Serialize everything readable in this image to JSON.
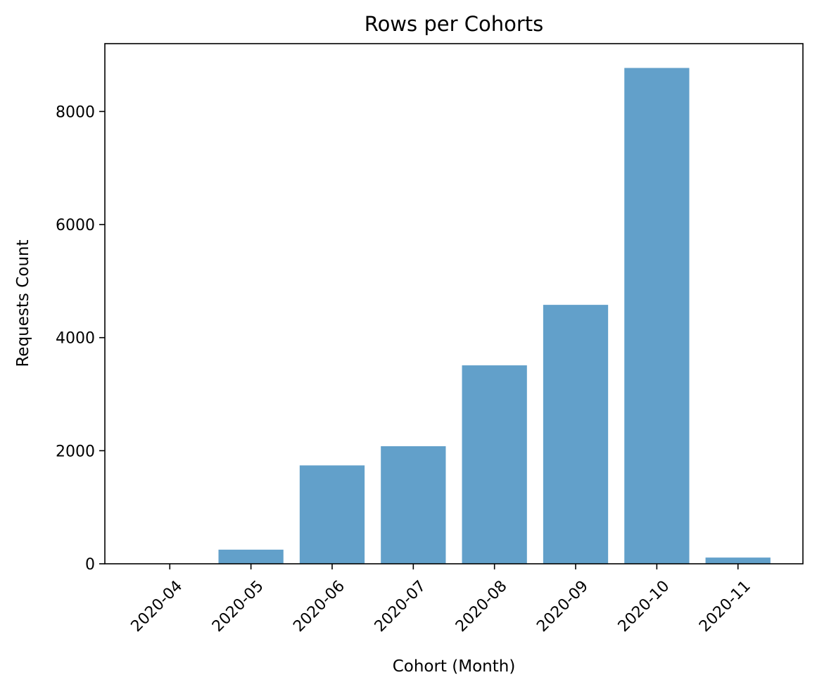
{
  "colors": {
    "bar": "#1f77b4",
    "bar_opacity": 0.7,
    "axes": "#000000",
    "background": "#ffffff"
  },
  "chart_data": {
    "type": "bar",
    "title": "Rows per Cohorts",
    "xlabel": "Cohort (Month)",
    "ylabel": "Requests Count",
    "categories": [
      "2020-04",
      "2020-05",
      "2020-06",
      "2020-07",
      "2020-08",
      "2020-09",
      "2020-10",
      "2020-11"
    ],
    "values": [
      5,
      250,
      1740,
      2080,
      3510,
      4580,
      8770,
      110
    ],
    "ylim": [
      0,
      9200
    ],
    "yticks": [
      0,
      2000,
      4000,
      6000,
      8000
    ],
    "ytick_labels": [
      "0",
      "2000",
      "4000",
      "6000",
      "8000"
    ],
    "xtick_rotation": 45,
    "grid": false,
    "legend": "none"
  }
}
